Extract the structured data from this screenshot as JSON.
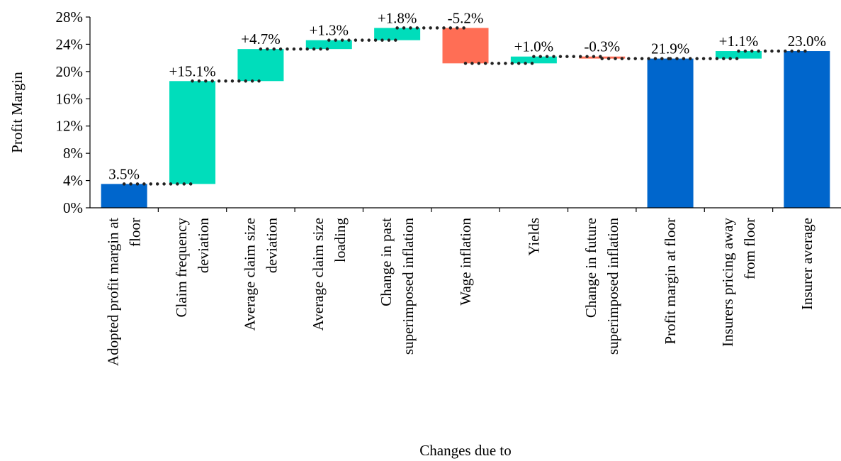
{
  "chart_data": {
    "type": "bar",
    "subtype": "waterfall",
    "title": "",
    "xlabel": "Changes due to",
    "ylabel": "Profit Margin",
    "ylim": [
      0,
      28
    ],
    "yticks": [
      0,
      4,
      8,
      12,
      16,
      20,
      24,
      28
    ],
    "ytick_labels": [
      "0%",
      "4%",
      "8%",
      "12%",
      "16%",
      "20%",
      "24%",
      "28%"
    ],
    "grid": false,
    "legend": "none",
    "colors": {
      "total": "#0066CC",
      "increase": "#00DDBB",
      "decrease": "#FF6E55",
      "connector": "#222222"
    },
    "categories": [
      [
        "Adopted profit margin at",
        "floor"
      ],
      [
        "Claim frequency",
        "deviation"
      ],
      [
        "Average claim size",
        "deviation"
      ],
      [
        "Average claim size",
        "loading"
      ],
      [
        "Change in past",
        "superimposed inflation"
      ],
      [
        "Wage inflation"
      ],
      [
        "Yields"
      ],
      [
        "Change in future",
        "superimposed inflation"
      ],
      [
        "Profit margin at floor"
      ],
      [
        "Insurers pricing away",
        "from floor"
      ],
      [
        "Insurer average"
      ]
    ],
    "bars": [
      {
        "kind": "total",
        "start": 0,
        "end": 3.5,
        "label": "3.5%"
      },
      {
        "kind": "increase",
        "start": 3.5,
        "end": 18.6,
        "label": "+15.1%"
      },
      {
        "kind": "increase",
        "start": 18.6,
        "end": 23.3,
        "label": "+4.7%"
      },
      {
        "kind": "increase",
        "start": 23.3,
        "end": 24.6,
        "label": "+1.3%"
      },
      {
        "kind": "increase",
        "start": 24.6,
        "end": 26.4,
        "label": "+1.8%"
      },
      {
        "kind": "decrease",
        "start": 26.4,
        "end": 21.2,
        "label": "-5.2%"
      },
      {
        "kind": "increase",
        "start": 21.2,
        "end": 22.2,
        "label": "+1.0%"
      },
      {
        "kind": "decrease",
        "start": 22.2,
        "end": 21.9,
        "label": "-0.3%"
      },
      {
        "kind": "total",
        "start": 0,
        "end": 21.9,
        "label": "21.9%"
      },
      {
        "kind": "increase",
        "start": 21.9,
        "end": 23.0,
        "label": "+1.1%"
      },
      {
        "kind": "total",
        "start": 0,
        "end": 23.0,
        "label": "23.0%"
      }
    ]
  }
}
